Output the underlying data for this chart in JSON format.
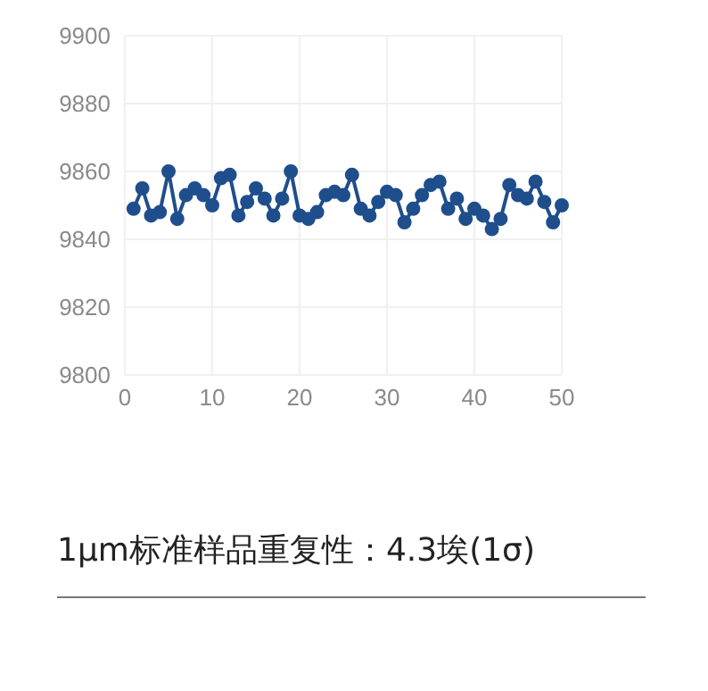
{
  "chart_data": {
    "type": "line",
    "title": "1μm标准样品重复性：4.3埃(1σ)",
    "x": [
      1,
      2,
      3,
      4,
      5,
      6,
      7,
      8,
      9,
      10,
      11,
      12,
      13,
      14,
      15,
      16,
      17,
      18,
      19,
      20,
      21,
      22,
      23,
      24,
      25,
      26,
      27,
      28,
      29,
      30,
      31,
      32,
      33,
      34,
      35,
      36,
      37,
      38,
      39,
      40,
      41,
      42,
      43,
      44,
      45,
      46,
      47,
      48,
      49,
      50
    ],
    "series": [
      {
        "color": "#1f4e8c",
        "values": [
          9849,
          9855,
          9847,
          9848,
          9860,
          9846,
          9853,
          9855,
          9853,
          9850,
          9858,
          9859,
          9847,
          9851,
          9855,
          9852,
          9847,
          9852,
          9860,
          9847,
          9846,
          9848,
          9853,
          9854,
          9853,
          9859,
          9849,
          9847,
          9851,
          9854,
          9853,
          9845,
          9849,
          9853,
          9856,
          9857,
          9849,
          9852,
          9846,
          9849,
          9847,
          9843,
          9846,
          9856,
          9853,
          9852,
          9857,
          9851,
          9845,
          9850
        ]
      }
    ],
    "xlim": [
      0,
      50
    ],
    "xticks": [
      0,
      10,
      20,
      30,
      40,
      50
    ],
    "ylim": [
      9800,
      9900
    ],
    "yticks": [
      9800,
      9820,
      9840,
      9860,
      9880,
      9900
    ],
    "grid": true,
    "marker": "circle",
    "line_style": "solid"
  }
}
